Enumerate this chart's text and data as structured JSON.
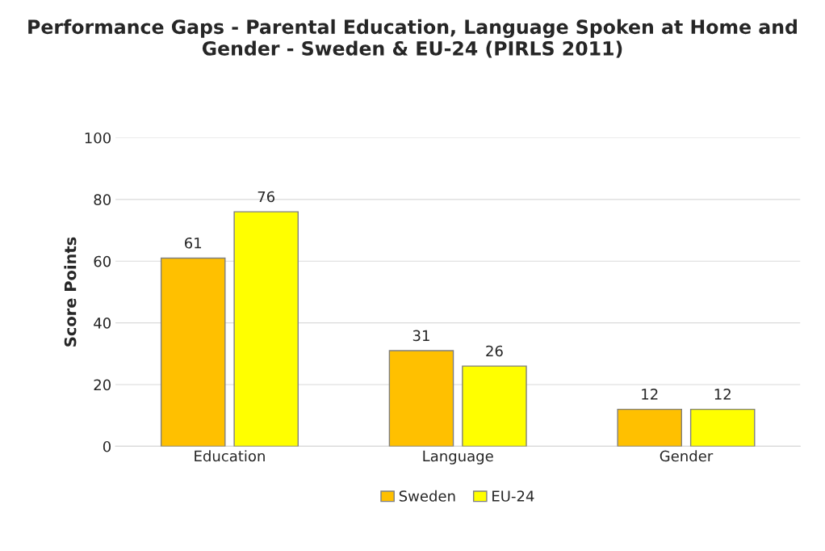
{
  "chart_data": {
    "type": "bar",
    "title": "Performance Gaps - Parental Education, Language Spoken at Home and Gender - Sweden & EU-24 (PIRLS 2011)",
    "ylabel": "Score Points",
    "categories": [
      "Education",
      "Language",
      "Gender"
    ],
    "series": [
      {
        "name": "Sweden",
        "color": "#ffc000",
        "values": [
          61,
          31,
          12
        ]
      },
      {
        "name": "EU-24",
        "color": "#ffff00",
        "values": [
          76,
          26,
          12
        ]
      }
    ],
    "ylim": [
      0,
      100
    ],
    "yticks": [
      0,
      20,
      40,
      60,
      80,
      100
    ],
    "grid": "y",
    "legend": "bottom",
    "data_labels": true
  }
}
